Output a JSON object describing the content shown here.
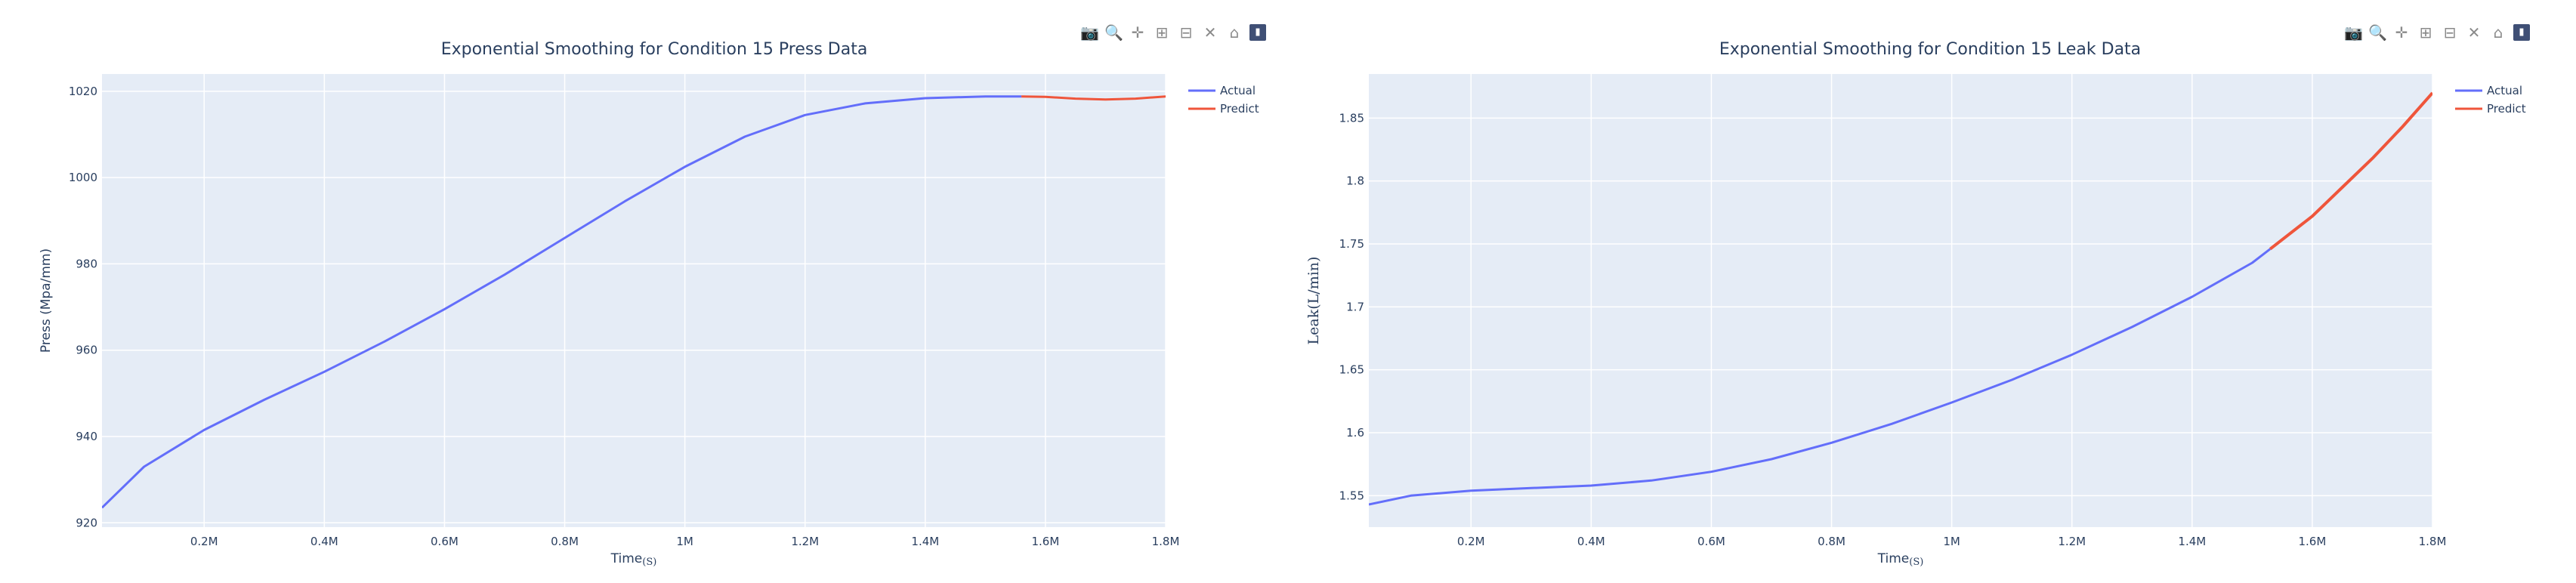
{
  "colors": {
    "actual": "#636efa",
    "predict": "#ef553b",
    "plot_bg": "#e5ecf6",
    "grid": "#ffffff"
  },
  "modebar": {
    "icons": [
      "camera-icon",
      "zoom-icon",
      "pan-icon",
      "zoom-in-icon",
      "zoom-out-icon",
      "autoscale-icon",
      "reset-axes-icon",
      "plotly-logo-icon"
    ],
    "glyphs": [
      "📷",
      "🔍",
      "✛",
      "⊞",
      "⊟",
      "✕",
      "⌂",
      "▮"
    ]
  },
  "chart_data": [
    {
      "type": "line",
      "title": "Exponential Smoothing for Condition 15 Press Data",
      "xlabel": "Time",
      "xlabel_unit": "(S)",
      "ylabel": "Press (Mpa/mm)",
      "xlim": [
        30000,
        1800000
      ],
      "ylim": [
        919,
        1024
      ],
      "xticks": [
        200000,
        400000,
        600000,
        800000,
        1000000,
        1200000,
        1400000,
        1600000,
        1800000
      ],
      "xtick_labels": [
        "0.2M",
        "0.4M",
        "0.6M",
        "0.8M",
        "1M",
        "1.2M",
        "1.4M",
        "1.6M",
        "1.8M"
      ],
      "yticks": [
        920,
        940,
        960,
        980,
        1000,
        1020
      ],
      "ytick_labels": [
        "920",
        "940",
        "960",
        "980",
        "1000",
        "1020"
      ],
      "grid": true,
      "legend": "top-right",
      "series": [
        {
          "name": "Actual",
          "x": [
            30000,
            100000,
            200000,
            300000,
            400000,
            500000,
            600000,
            700000,
            800000,
            900000,
            1000000,
            1100000,
            1200000,
            1300000,
            1400000,
            1500000,
            1560000
          ],
          "y": [
            923.5,
            933,
            941.5,
            948.5,
            955,
            962,
            969.5,
            977.5,
            986,
            994.5,
            1002.5,
            1009.5,
            1014.5,
            1017.2,
            1018.4,
            1018.8,
            1018.8
          ]
        },
        {
          "name": "Predict",
          "x": [
            1560000,
            1600000,
            1650000,
            1700000,
            1750000,
            1800000
          ],
          "y": [
            1018.8,
            1018.7,
            1018.3,
            1018.1,
            1018.3,
            1018.8
          ]
        }
      ]
    },
    {
      "type": "line",
      "title": "Exponential Smoothing for Condition 15 Leak Data",
      "xlabel": "Time",
      "xlabel_unit": "(S)",
      "ylabel": "Leak(L/min)",
      "xlim": [
        30000,
        1800000
      ],
      "ylim": [
        1.525,
        1.885
      ],
      "xticks": [
        200000,
        400000,
        600000,
        800000,
        1000000,
        1200000,
        1400000,
        1600000,
        1800000
      ],
      "xtick_labels": [
        "0.2M",
        "0.4M",
        "0.6M",
        "0.8M",
        "1M",
        "1.2M",
        "1.4M",
        "1.6M",
        "1.8M"
      ],
      "yticks": [
        1.55,
        1.6,
        1.65,
        1.7,
        1.75,
        1.8,
        1.85
      ],
      "ytick_labels": [
        "1.55",
        "1.6",
        "1.65",
        "1.7",
        "1.75",
        "1.8",
        "1.85"
      ],
      "grid": true,
      "legend": "top-right",
      "series": [
        {
          "name": "Actual",
          "x": [
            30000,
            100000,
            200000,
            300000,
            400000,
            500000,
            600000,
            700000,
            800000,
            900000,
            1000000,
            1100000,
            1200000,
            1300000,
            1400000,
            1500000,
            1530000
          ],
          "y": [
            1.543,
            1.55,
            1.554,
            1.556,
            1.558,
            1.562,
            1.569,
            1.579,
            1.592,
            1.607,
            1.624,
            1.642,
            1.662,
            1.684,
            1.708,
            1.735,
            1.746
          ]
        },
        {
          "name": "Predict",
          "x": [
            1530000,
            1600000,
            1650000,
            1700000,
            1750000,
            1800000
          ],
          "y": [
            1.746,
            1.772,
            1.795,
            1.818,
            1.843,
            1.87
          ]
        }
      ]
    }
  ]
}
